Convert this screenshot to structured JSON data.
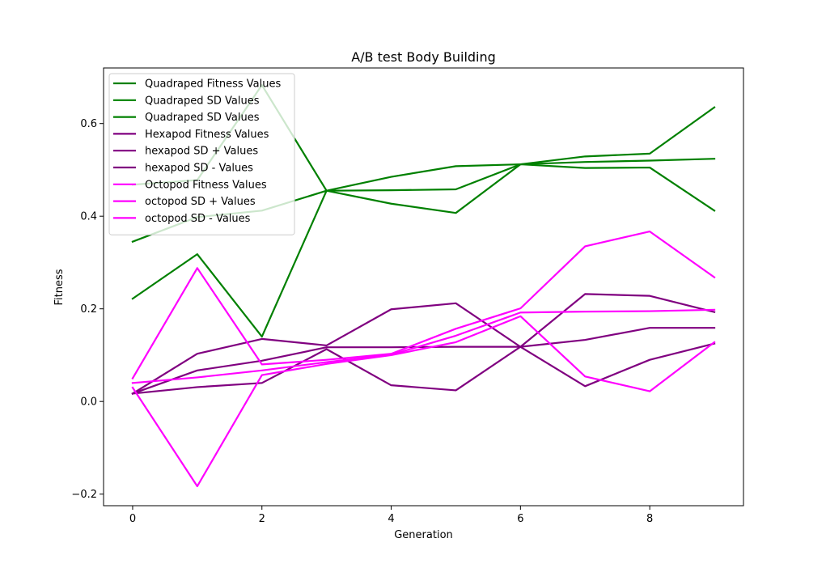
{
  "chart_data": {
    "type": "line",
    "title": "A/B test Body Building",
    "xlabel": "Generation",
    "ylabel": "Fitness",
    "xlim": [
      -0.45,
      9.45
    ],
    "ylim": [
      -0.225,
      0.72
    ],
    "xticks": [
      0,
      2,
      4,
      6,
      8
    ],
    "xtick_labels": [
      "0",
      "2",
      "4",
      "6",
      "8"
    ],
    "yticks": [
      -0.2,
      0.0,
      0.2,
      0.4,
      0.6
    ],
    "ytick_labels": [
      "−0.2",
      "0.0",
      "0.2",
      "0.4",
      "0.6"
    ],
    "grid": false,
    "legend_position": "top-left",
    "x": [
      0,
      1,
      2,
      3,
      4,
      5,
      6,
      7,
      8,
      9
    ],
    "series": [
      {
        "name": "Quadraped Fitness Values",
        "color": "#008000",
        "values": [
          0.345,
          0.398,
          0.412,
          0.455,
          0.485,
          0.508,
          0.512,
          0.517,
          0.52,
          0.524
        ]
      },
      {
        "name": "Quadraped SD Values",
        "color": "#008000",
        "values": [
          0.468,
          0.478,
          0.683,
          0.455,
          0.427,
          0.407,
          0.512,
          0.529,
          0.535,
          0.635
        ]
      },
      {
        "name": "Quadraped SD Values",
        "color": "#008000",
        "values": [
          0.222,
          0.318,
          0.14,
          0.455,
          0.456,
          0.458,
          0.512,
          0.504,
          0.505,
          0.412
        ]
      },
      {
        "name": "Hexapod Fitness Values",
        "color": "#800080",
        "values": [
          0.017,
          0.067,
          0.088,
          0.117,
          0.117,
          0.118,
          0.118,
          0.133,
          0.159,
          0.159
        ]
      },
      {
        "name": "hexapod SD + Values",
        "color": "#800080",
        "values": [
          0.017,
          0.103,
          0.135,
          0.121,
          0.199,
          0.212,
          0.118,
          0.232,
          0.228,
          0.193
        ]
      },
      {
        "name": "hexapod SD - Values",
        "color": "#800080",
        "values": [
          0.017,
          0.031,
          0.04,
          0.113,
          0.035,
          0.024,
          0.118,
          0.033,
          0.09,
          0.125
        ]
      },
      {
        "name": "Octopod Fitness Values",
        "color": "#ff00ff",
        "values": [
          0.04,
          0.052,
          0.067,
          0.085,
          0.101,
          0.142,
          0.192,
          0.194,
          0.195,
          0.198
        ]
      },
      {
        "name": "octopod SD + Values",
        "color": "#ff00ff",
        "values": [
          0.05,
          0.288,
          0.08,
          0.09,
          0.103,
          0.157,
          0.201,
          0.335,
          0.367,
          0.268
        ]
      },
      {
        "name": "octopod SD - Values",
        "color": "#ff00ff",
        "values": [
          0.03,
          -0.183,
          0.057,
          0.081,
          0.1,
          0.128,
          0.184,
          0.054,
          0.022,
          0.128
        ]
      }
    ]
  }
}
